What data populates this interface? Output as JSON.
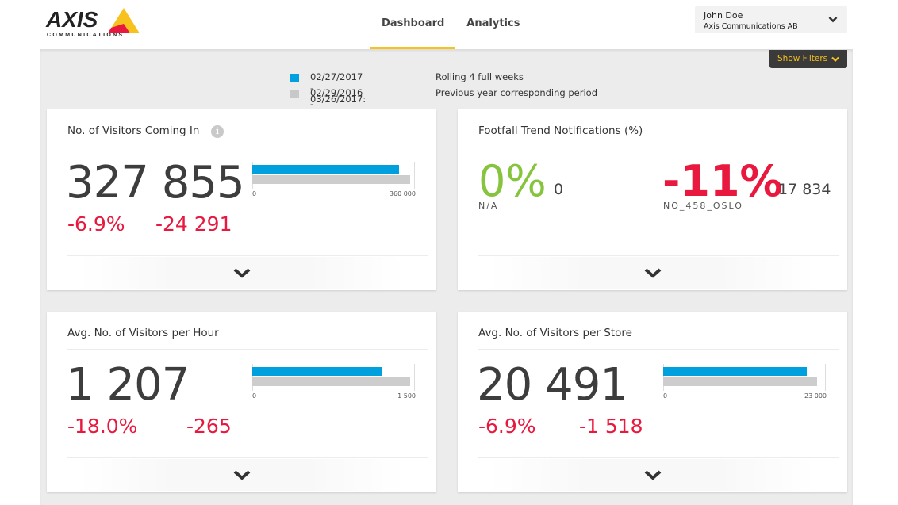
{
  "header": {
    "logo": {
      "brand": "AXIS",
      "sub": "COMMUNICATIONS"
    },
    "tabs": [
      {
        "label": "Dashboard",
        "active": true
      },
      {
        "label": "Analytics",
        "active": false
      }
    ],
    "user": {
      "name": "John Doe",
      "organization": "Axis Communications AB",
      "icon": "chevron-down-icon"
    }
  },
  "filters": {
    "label": "Show Filters",
    "icon": "chevron-down-icon"
  },
  "legend": [
    {
      "color": "#009fde",
      "dates": "02/27/2017 - 03/26/2017:",
      "description": "Rolling 4 full weeks"
    },
    {
      "color": "#c8c8c8",
      "dates": "02/29/2016 - 03/27/2016:",
      "description": "Previous year corresponding period"
    }
  ],
  "colors": {
    "accent": "#f7c21d",
    "current": "#009fde",
    "previous": "#cdcdcd",
    "negative": "#e8183f",
    "positive": "#86c43e"
  },
  "cards": [
    {
      "title": "No. of Visitors Coming In",
      "has_info": true,
      "value": "327 855",
      "change_pct": "-6.9%",
      "change_abs": "-24 291",
      "bar": {
        "current": 327855,
        "previous": 352146,
        "axis_min_label": "0",
        "axis_max_label": "360 000",
        "axis_max": 360000
      }
    },
    {
      "title": "Footfall Trend Notifications (%)",
      "left": {
        "percent": "0%",
        "count": "0",
        "label": "N/A"
      },
      "right": {
        "percent": "-11%",
        "count": "17 834",
        "label": "NO_458_OSLO"
      }
    },
    {
      "title": "Avg. No. of Visitors per Hour",
      "value": "1 207",
      "change_pct": "-18.0%",
      "change_abs": "-265",
      "bar": {
        "current": 1207,
        "previous": 1472,
        "axis_min_label": "0",
        "axis_max_label": "1 500",
        "axis_max": 1500
      }
    },
    {
      "title": "Avg. No. of Visitors per Store",
      "value": "20 491",
      "change_pct": "-6.9%",
      "change_abs": "-1 518",
      "bar": {
        "current": 20491,
        "previous": 22009,
        "axis_min_label": "0",
        "axis_max_label": "23 000",
        "axis_max": 23000
      }
    }
  ]
}
